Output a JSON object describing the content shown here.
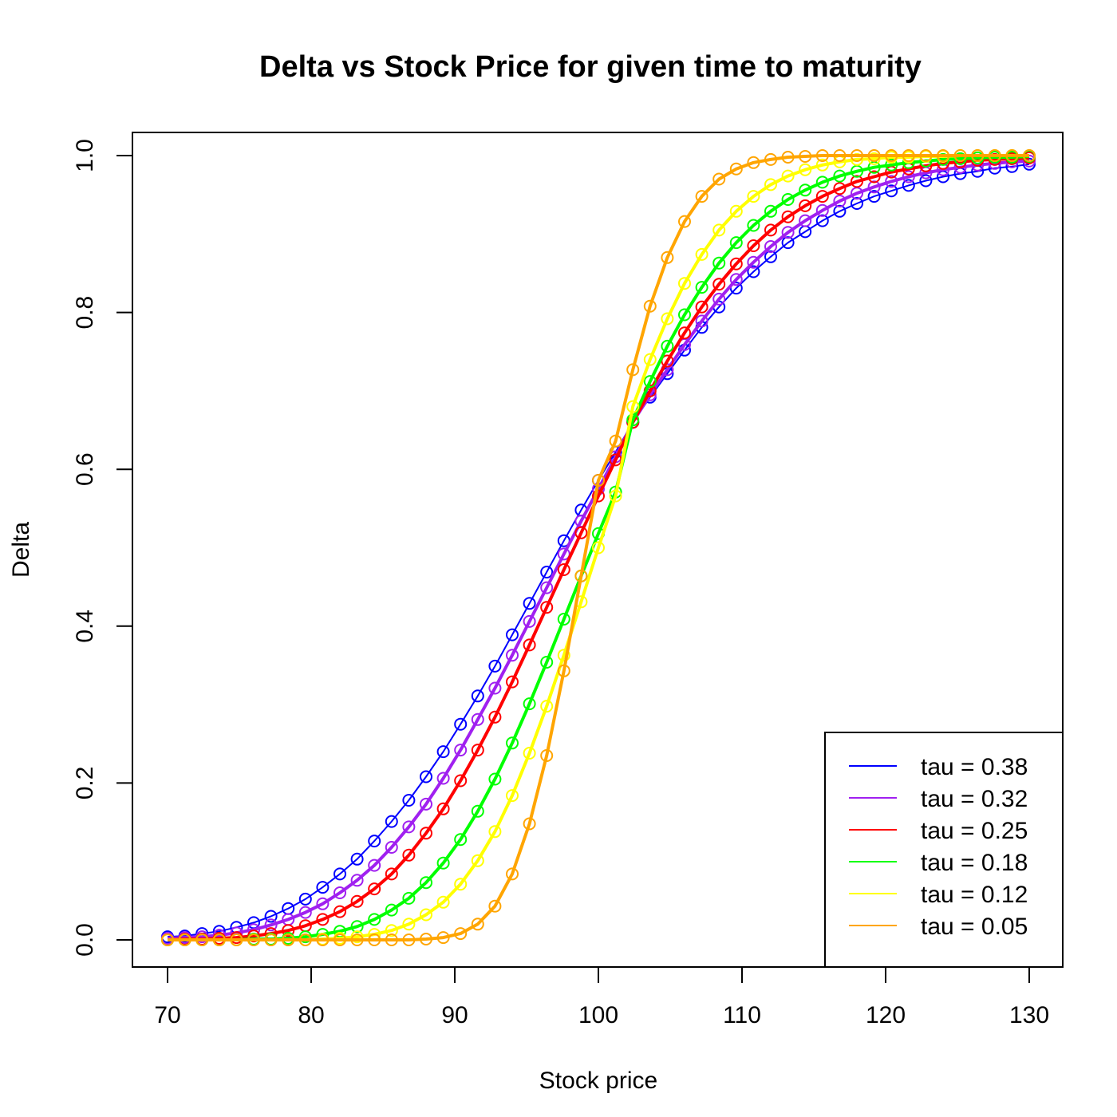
{
  "chart_data": {
    "type": "line",
    "title": "Delta vs Stock Price for given time to maturity",
    "xlabel": "Stock price",
    "ylabel": "Delta",
    "xlim": [
      70,
      130
    ],
    "ylim": [
      0,
      1
    ],
    "x_ticks": [
      "70",
      "80",
      "90",
      "100",
      "110",
      "120",
      "130"
    ],
    "y_ticks": [
      "0.0",
      "0.2",
      "0.4",
      "0.6",
      "0.8",
      "1.0"
    ],
    "grid": false,
    "legend_position": "bottom-right",
    "markers": "open circles",
    "x": [
      70.0,
      71.2,
      72.4,
      73.6,
      74.8,
      76.0,
      77.2,
      78.4,
      79.6,
      80.8,
      82.0,
      83.2,
      84.4,
      85.6,
      86.8,
      88.0,
      89.2,
      90.4,
      91.6,
      92.8,
      94.0,
      95.2,
      96.4,
      97.6,
      98.8,
      100.0,
      101.2,
      102.4,
      103.6,
      104.8,
      106.0,
      107.2,
      108.4,
      109.6,
      110.8,
      112.0,
      113.2,
      114.4,
      115.6,
      116.8,
      118.0,
      119.2,
      120.4,
      121.6,
      122.8,
      124.0,
      125.2,
      126.4,
      127.6,
      128.8,
      130.0
    ],
    "series": [
      {
        "name": "tau = 0.38",
        "color": "#0000ff",
        "line_width": 2,
        "values": [
          0.004,
          0.005,
          0.008,
          0.011,
          0.016,
          0.022,
          0.03,
          0.04,
          0.052,
          0.067,
          0.084,
          0.103,
          0.126,
          0.151,
          0.178,
          0.208,
          0.24,
          0.275,
          0.311,
          0.349,
          0.389,
          0.429,
          0.469,
          0.509,
          0.548,
          0.586,
          0.622,
          0.66,
          0.692,
          0.722,
          0.752,
          0.781,
          0.807,
          0.831,
          0.852,
          0.871,
          0.889,
          0.903,
          0.917,
          0.929,
          0.939,
          0.948,
          0.955,
          0.962,
          0.968,
          0.973,
          0.977,
          0.98,
          0.984,
          0.986,
          0.989
        ]
      },
      {
        "name": "tau = 0.32",
        "color": "#a020f0",
        "line_width": 4,
        "values": [
          0.002,
          0.003,
          0.004,
          0.006,
          0.009,
          0.013,
          0.019,
          0.026,
          0.035,
          0.046,
          0.06,
          0.076,
          0.095,
          0.118,
          0.144,
          0.173,
          0.206,
          0.242,
          0.281,
          0.321,
          0.363,
          0.406,
          0.449,
          0.492,
          0.534,
          0.575,
          0.616,
          0.66,
          0.695,
          0.727,
          0.759,
          0.789,
          0.817,
          0.842,
          0.864,
          0.884,
          0.902,
          0.917,
          0.93,
          0.942,
          0.952,
          0.96,
          0.967,
          0.973,
          0.978,
          0.982,
          0.985,
          0.988,
          0.99,
          0.992,
          0.993
        ]
      },
      {
        "name": "tau = 0.25",
        "color": "#ff0000",
        "line_width": 4,
        "values": [
          0.0,
          0.001,
          0.001,
          0.002,
          0.003,
          0.005,
          0.008,
          0.012,
          0.018,
          0.026,
          0.036,
          0.049,
          0.065,
          0.084,
          0.108,
          0.136,
          0.167,
          0.203,
          0.242,
          0.284,
          0.329,
          0.376,
          0.424,
          0.472,
          0.519,
          0.566,
          0.612,
          0.66,
          0.7,
          0.738,
          0.774,
          0.807,
          0.836,
          0.862,
          0.885,
          0.905,
          0.922,
          0.936,
          0.948,
          0.958,
          0.967,
          0.973,
          0.979,
          0.983,
          0.987,
          0.99,
          0.992,
          0.994,
          0.995,
          0.996,
          0.997
        ]
      },
      {
        "name": "tau = 0.18",
        "color": "#00ff00",
        "line_width": 4,
        "values": [
          0.0,
          0.0,
          0.0,
          0.0,
          0.0,
          0.001,
          0.001,
          0.002,
          0.004,
          0.007,
          0.011,
          0.017,
          0.026,
          0.038,
          0.053,
          0.073,
          0.098,
          0.128,
          0.164,
          0.205,
          0.251,
          0.301,
          0.354,
          0.409,
          0.464,
          0.518,
          0.571,
          0.663,
          0.712,
          0.757,
          0.797,
          0.832,
          0.863,
          0.889,
          0.911,
          0.929,
          0.944,
          0.956,
          0.966,
          0.974,
          0.98,
          0.985,
          0.988,
          0.991,
          0.993,
          0.995,
          0.996,
          0.997,
          0.998,
          0.998,
          0.999
        ]
      },
      {
        "name": "tau = 0.12",
        "color": "#ffff00",
        "line_width": 4,
        "values": [
          0.0,
          0.0,
          0.0,
          0.0,
          0.0,
          0.0,
          0.0,
          0.0,
          0.0,
          0.001,
          0.002,
          0.004,
          0.007,
          0.012,
          0.02,
          0.032,
          0.048,
          0.071,
          0.101,
          0.138,
          0.184,
          0.238,
          0.298,
          0.363,
          0.431,
          0.5,
          0.566,
          0.68,
          0.74,
          0.792,
          0.837,
          0.874,
          0.905,
          0.929,
          0.948,
          0.963,
          0.974,
          0.982,
          0.988,
          0.992,
          0.995,
          0.996,
          0.998,
          0.998,
          0.999,
          0.999,
          1.0,
          1.0,
          1.0,
          1.0,
          1.0
        ]
      },
      {
        "name": "tau = 0.05",
        "color": "#ffa500",
        "line_width": 4,
        "values": [
          0.0,
          0.0,
          0.0,
          0.0,
          0.0,
          0.0,
          0.0,
          0.0,
          0.0,
          0.0,
          0.0,
          0.0,
          0.0,
          0.0,
          0.0,
          0.001,
          0.003,
          0.008,
          0.02,
          0.043,
          0.084,
          0.148,
          0.235,
          0.343,
          0.464,
          0.586,
          0.636,
          0.727,
          0.808,
          0.87,
          0.916,
          0.948,
          0.97,
          0.983,
          0.991,
          0.995,
          0.998,
          0.999,
          1.0,
          1.0,
          1.0,
          1.0,
          1.0,
          1.0,
          1.0,
          1.0,
          1.0,
          1.0,
          1.0,
          1.0,
          1.0
        ]
      }
    ]
  }
}
